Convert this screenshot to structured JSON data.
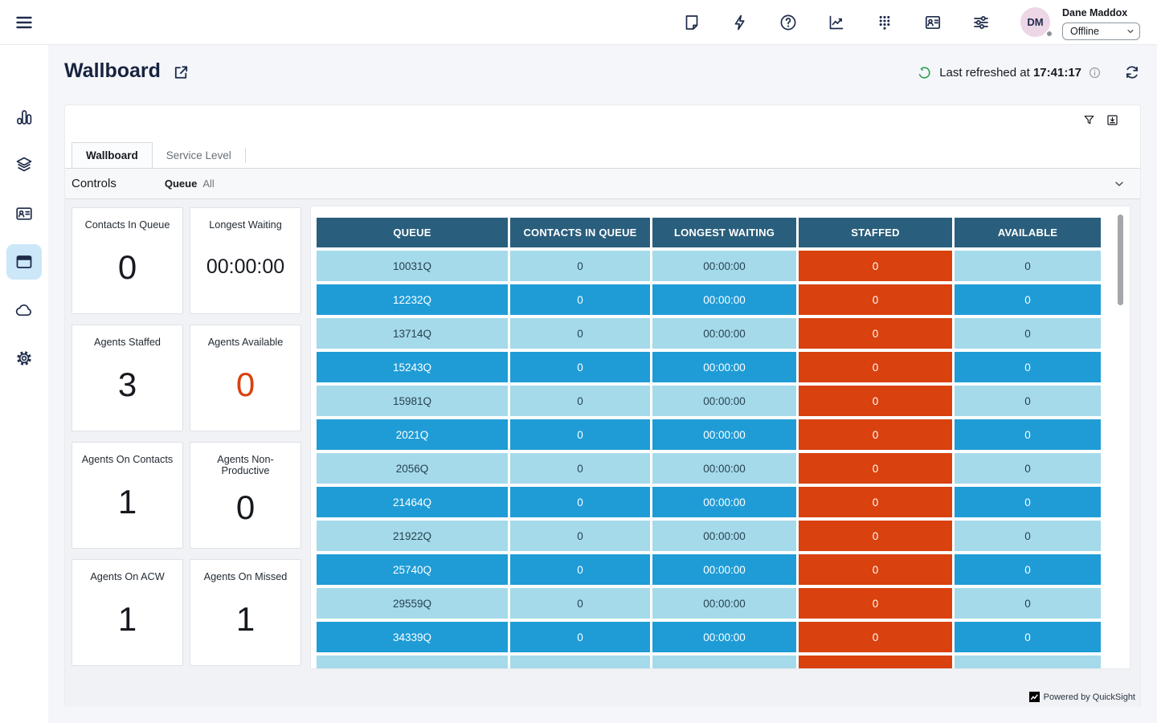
{
  "topbar": {
    "icons": [
      "note-icon",
      "quick-connects-icon",
      "help-icon",
      "metrics-icon",
      "dialpad-icon",
      "directory-icon",
      "settings-sliders-icon"
    ],
    "user": {
      "initials": "DM",
      "name": "Dane Maddox",
      "status": "Offline"
    }
  },
  "sidebar": {
    "items": [
      "bar-chart-icon",
      "layers-icon",
      "id-card-icon",
      "browser-window-icon",
      "cloud-icon",
      "gear-icon"
    ],
    "active_item": "browser-window-icon"
  },
  "header": {
    "title": "Wallboard",
    "refresh_label": "Last refreshed at",
    "refresh_time": "17:41:17"
  },
  "panel": {
    "tabs": [
      {
        "label": "Wallboard",
        "active": true
      },
      {
        "label": "Service Level",
        "active": false
      }
    ],
    "controls": {
      "title": "Controls",
      "filter_label": "Queue",
      "filter_value": "All"
    }
  },
  "kpis": [
    {
      "label": "Contacts In Queue",
      "value": "0"
    },
    {
      "label": "Longest Waiting",
      "value": "00:00:00"
    },
    {
      "label": "Agents Staffed",
      "value": "3"
    },
    {
      "label": "Agents Available",
      "value": "0",
      "value_color": "#D9410E"
    },
    {
      "label": "Agents On Contacts",
      "value": "1"
    },
    {
      "label": "Agents Non-Productive",
      "value": "0"
    },
    {
      "label": "Agents On ACW",
      "value": "1"
    },
    {
      "label": "Agents On Missed",
      "value": "1"
    }
  ],
  "chart_data": {
    "type": "table",
    "title": "Wallboard queue table",
    "columns": [
      "QUEUE",
      "CONTACTS IN QUEUE",
      "LONGEST WAITING",
      "STAFFED",
      "AVAILABLE"
    ],
    "rows": [
      [
        "10031Q",
        "0",
        "00:00:00",
        "0",
        "0"
      ],
      [
        "12232Q",
        "0",
        "00:00:00",
        "0",
        "0"
      ],
      [
        "13714Q",
        "0",
        "00:00:00",
        "0",
        "0"
      ],
      [
        "15243Q",
        "0",
        "00:00:00",
        "0",
        "0"
      ],
      [
        "15981Q",
        "0",
        "00:00:00",
        "0",
        "0"
      ],
      [
        "2021Q",
        "0",
        "00:00:00",
        "0",
        "0"
      ],
      [
        "2056Q",
        "0",
        "00:00:00",
        "0",
        "0"
      ],
      [
        "21464Q",
        "0",
        "00:00:00",
        "0",
        "0"
      ],
      [
        "21922Q",
        "0",
        "00:00:00",
        "0",
        "0"
      ],
      [
        "25740Q",
        "0",
        "00:00:00",
        "0",
        "0"
      ],
      [
        "29559Q",
        "0",
        "00:00:00",
        "0",
        "0"
      ],
      [
        "34339Q",
        "0",
        "00:00:00",
        "0",
        "0"
      ]
    ],
    "partial_row": [
      "",
      "",
      "",
      "",
      ""
    ],
    "layout": {
      "staffed_column_index": 3,
      "alternating_rows": true,
      "scrollable": true
    }
  },
  "footer": {
    "powered_by": "Powered by QuickSight"
  },
  "colors": {
    "table_header_bg": "#2A5E7D",
    "row_light": "#A5DAEB",
    "row_dark": "#1F9CD6",
    "staffed_bg": "#D9410E",
    "kpi_alert": "#D9410E",
    "refresh_green": "#2E9E4F",
    "sidebar_active_bg": "#CBE7F8",
    "navy": "#1E2B4A"
  }
}
